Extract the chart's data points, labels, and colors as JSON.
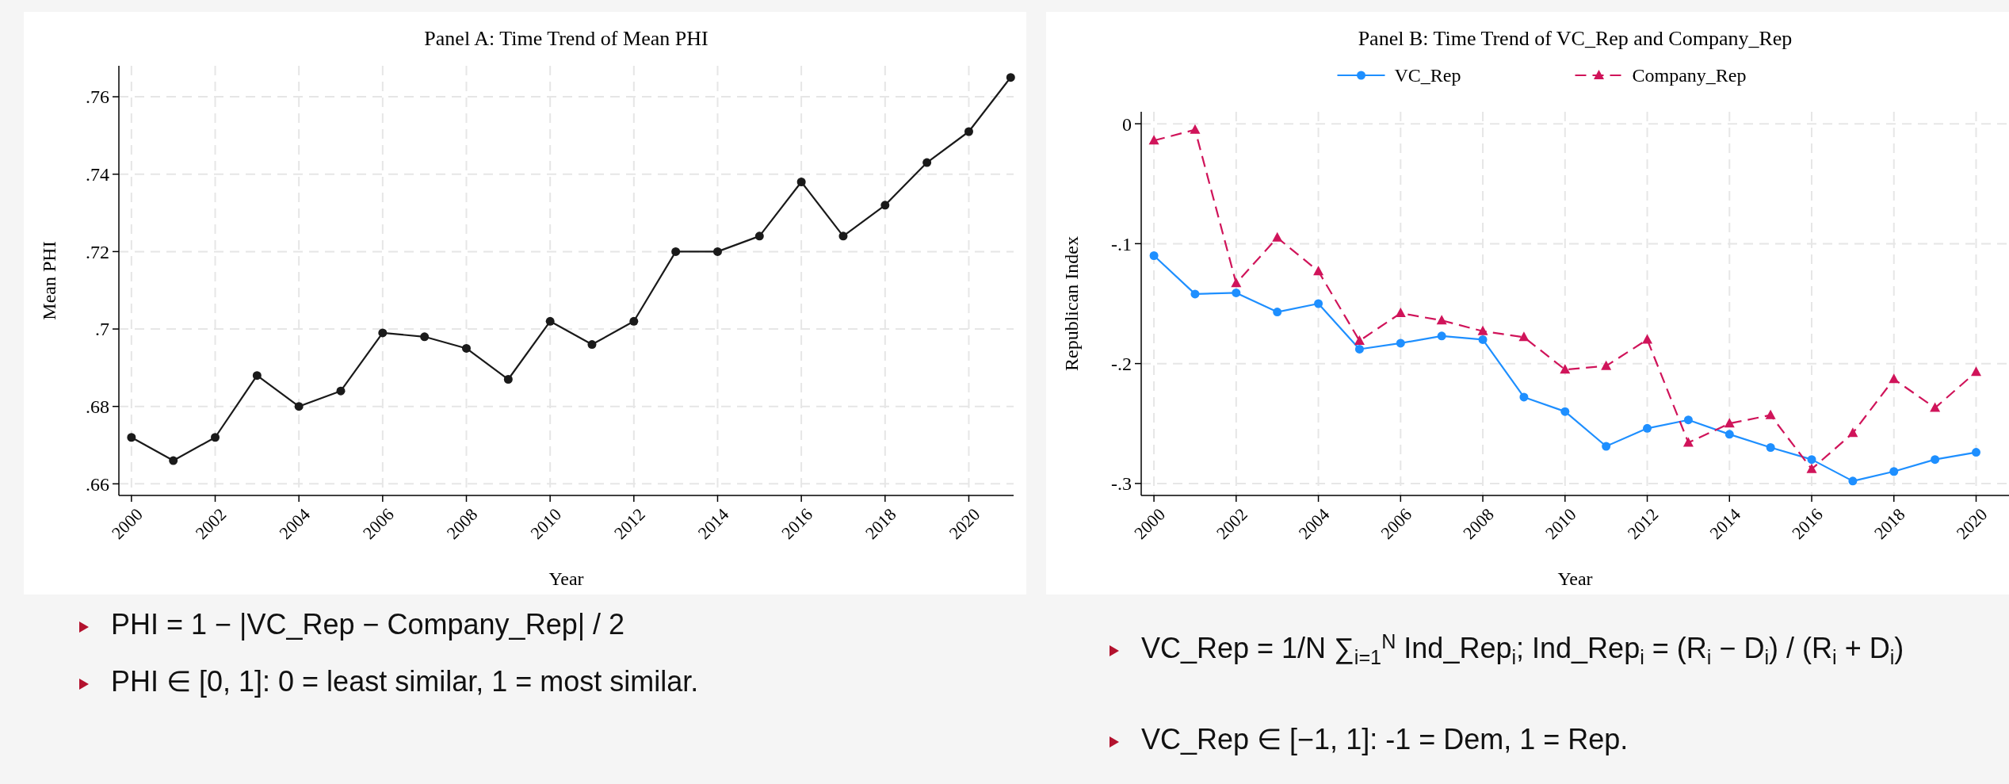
{
  "chart_data": [
    {
      "type": "line",
      "title": "Panel A: Time Trend of Mean PHI",
      "xlabel": "Year",
      "ylabel": "Mean PHI",
      "x": [
        2000,
        2001,
        2002,
        2003,
        2004,
        2005,
        2006,
        2007,
        2008,
        2009,
        2010,
        2011,
        2012,
        2013,
        2014,
        2015,
        2016,
        2017,
        2018,
        2019,
        2020,
        2021
      ],
      "series": [
        {
          "color": "#1a1a1a",
          "marker": "circle",
          "line_style": "solid",
          "values": [
            0.672,
            0.666,
            0.672,
            0.688,
            0.68,
            0.684,
            0.699,
            0.698,
            0.695,
            0.687,
            0.702,
            0.696,
            0.702,
            0.72,
            0.72,
            0.724,
            0.738,
            0.724,
            0.732,
            0.743,
            0.751,
            0.765
          ]
        }
      ],
      "xlim": [
        1999.7,
        2021.07
      ],
      "xticks": [
        2000,
        2002,
        2004,
        2006,
        2008,
        2010,
        2012,
        2014,
        2016,
        2018,
        2020
      ],
      "ylim": [
        0.657,
        0.768
      ],
      "yticks": [
        {
          "value": 0.66,
          "label": ".66"
        },
        {
          "value": 0.68,
          "label": ".68"
        },
        {
          "value": 0.7,
          "label": ".7"
        },
        {
          "value": 0.72,
          "label": ".72"
        },
        {
          "value": 0.74,
          "label": ".74"
        },
        {
          "value": 0.76,
          "label": ".76"
        }
      ],
      "grid": true,
      "annotations": [
        "PHI = 1 − |VC_Rep − Company_Rep| / 2",
        "PHI ∈ [0, 1]: 0 = least similar, 1 = most similar."
      ]
    },
    {
      "type": "line",
      "title": "Panel B: Time Trend of VC_Rep and Company_Rep",
      "xlabel": "Year",
      "ylabel": "Republican Index",
      "x": [
        2000,
        2001,
        2002,
        2003,
        2004,
        2005,
        2006,
        2007,
        2008,
        2009,
        2010,
        2011,
        2012,
        2013,
        2014,
        2015,
        2016,
        2017,
        2018,
        2019,
        2020
      ],
      "series": [
        {
          "name": "VC_Rep",
          "color": "#1e8fff",
          "marker": "circle",
          "line_style": "solid",
          "values": [
            -0.11,
            -0.142,
            -0.141,
            -0.157,
            -0.15,
            -0.188,
            -0.183,
            -0.177,
            -0.18,
            -0.228,
            -0.24,
            -0.269,
            -0.254,
            -0.247,
            -0.259,
            -0.27,
            -0.28,
            -0.298,
            -0.29,
            -0.28,
            -0.274
          ]
        },
        {
          "name": "Company_Rep",
          "color": "#d0145a",
          "marker": "triangle",
          "line_style": "dashed",
          "values": [
            -0.014,
            -0.005,
            -0.133,
            -0.095,
            -0.123,
            -0.181,
            -0.158,
            -0.164,
            -0.173,
            -0.178,
            -0.205,
            -0.202,
            -0.18,
            -0.266,
            -0.25,
            -0.243,
            -0.288,
            -0.258,
            -0.213,
            -0.237,
            -0.207
          ]
        }
      ],
      "xlim": [
        1999.69,
        2020.8
      ],
      "xticks": [
        2000,
        2002,
        2004,
        2006,
        2008,
        2010,
        2012,
        2014,
        2016,
        2018,
        2020
      ],
      "ylim": [
        -0.31,
        0.01
      ],
      "yticks": [
        {
          "value": -0.3,
          "label": "-.3"
        },
        {
          "value": -0.2,
          "label": "-.2"
        },
        {
          "value": -0.1,
          "label": "-.1"
        },
        0
      ],
      "grid": true,
      "legend": "top",
      "annotations": [
        "VC_Rep = 1/N ∑$_{i=1}$$^{N}$ Ind_Rep$_{i}$; Ind_Rep$_{i}$ = (R$_{i}$ − D$_{i}$) / (R$_{i}$ + D$_{i}$)",
        "VC_Rep ∈ [−1, 1]: -1 = Dem, 1 = Rep."
      ]
    }
  ]
}
